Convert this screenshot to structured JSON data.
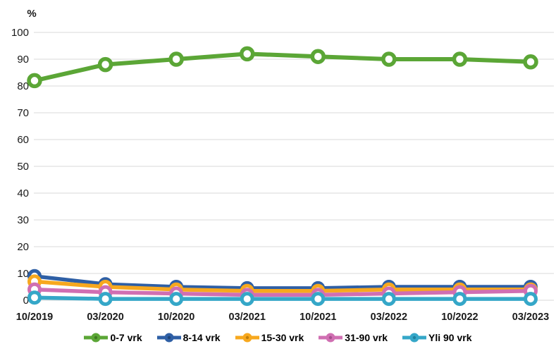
{
  "chart_data": {
    "type": "line",
    "title": "",
    "ylabel": "%",
    "xlabel": "",
    "categories": [
      "10/2019",
      "03/2020",
      "10/2020",
      "03/2021",
      "10/2021",
      "03/2022",
      "10/2022",
      "03/2023"
    ],
    "y_ticks": [
      100,
      90,
      80,
      70,
      60,
      50,
      40,
      30,
      20,
      10,
      0
    ],
    "ylim": [
      0,
      100
    ],
    "grid": true,
    "legend_position": "bottom",
    "series": [
      {
        "name": "0-7 vrk",
        "color": "#5BA636",
        "dark": "#3E7A22",
        "values": [
          82,
          88,
          90,
          92,
          91,
          90,
          90,
          89
        ]
      },
      {
        "name": "8-14 vrk",
        "color": "#2E5FA5",
        "dark": "#1E4478",
        "values": [
          9,
          6,
          5,
          4.5,
          4.5,
          5,
          5,
          5
        ]
      },
      {
        "name": "15-30 vrk",
        "color": "#F7A81E",
        "dark": "#C07E0D",
        "values": [
          7,
          5,
          4,
          3.5,
          3.5,
          4,
          4,
          4
        ]
      },
      {
        "name": "31-90 vrk",
        "color": "#D06FB2",
        "dark": "#A44E8B",
        "values": [
          4,
          3,
          2.5,
          2,
          2,
          2.5,
          3,
          3.5
        ]
      },
      {
        "name": "Yli 90 vrk",
        "color": "#35A7C8",
        "dark": "#20809E",
        "values": [
          1,
          0.5,
          0.5,
          0.5,
          0.5,
          0.5,
          0.5,
          0.5
        ]
      }
    ]
  },
  "colors": {
    "grid": "#D9D9D9",
    "text": "#1a1a1a",
    "background": "#FFFFFF"
  }
}
